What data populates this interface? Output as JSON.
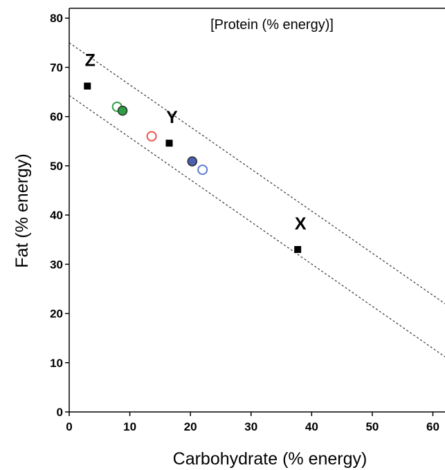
{
  "chart_data": {
    "type": "scatter",
    "subtitle": "[Protein (% energy)]",
    "xlabel": "Carbohydrate (% energy)",
    "ylabel": "Fat (% energy)",
    "xlim": [
      0,
      62
    ],
    "ylim": [
      0,
      82
    ],
    "x_ticks": [
      0,
      10,
      20,
      30,
      40,
      50,
      60
    ],
    "y_ticks": [
      0,
      10,
      20,
      30,
      40,
      50,
      60,
      70,
      80
    ],
    "grid": false,
    "series": [
      {
        "marker": "square",
        "fill": "#000000",
        "stroke": "#000000",
        "points": [
          {
            "x": 3,
            "y": 66.2,
            "label": "Z"
          },
          {
            "x": 16.5,
            "y": 54.6,
            "label": "Y"
          },
          {
            "x": 37.7,
            "y": 33,
            "label": "X"
          }
        ]
      },
      {
        "marker": "circle-open",
        "stroke": "#2e9e44",
        "points": [
          {
            "x": 7.9,
            "y": 62
          }
        ]
      },
      {
        "marker": "circle-filled",
        "fill": "#2e9e44",
        "stroke": "#2a2a2a",
        "points": [
          {
            "x": 8.8,
            "y": 61.2
          }
        ]
      },
      {
        "marker": "circle-open",
        "stroke": "#e8564c",
        "points": [
          {
            "x": 13.6,
            "y": 56
          }
        ]
      },
      {
        "marker": "circle-filled",
        "fill": "#4a5fb0",
        "stroke": "#2a2a2a",
        "points": [
          {
            "x": 20.3,
            "y": 50.9
          }
        ]
      },
      {
        "marker": "circle-open",
        "stroke": "#5e7bd0",
        "points": [
          {
            "x": 22,
            "y": 49.2
          }
        ]
      }
    ],
    "reference_lines": [
      {
        "style": "dashed",
        "points": [
          [
            0,
            75
          ],
          [
            62,
            22
          ]
        ]
      },
      {
        "style": "dashed",
        "points": [
          [
            0,
            64.3
          ],
          [
            62,
            11.2
          ]
        ]
      }
    ]
  }
}
